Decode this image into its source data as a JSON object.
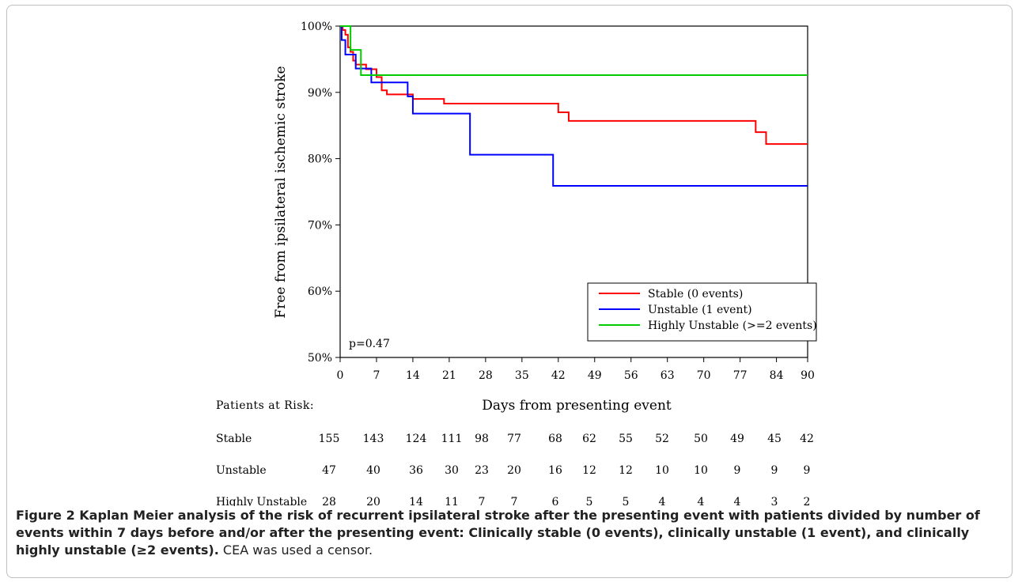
{
  "chart_data": {
    "type": "line",
    "step": true,
    "xlabel": "Days from presenting event",
    "ylabel": "Free from ipsilateral ischemic stroke",
    "xlim": [
      0,
      90
    ],
    "ylim": [
      50,
      100
    ],
    "x_ticks": [
      0,
      7,
      14,
      21,
      28,
      35,
      42,
      49,
      56,
      63,
      70,
      77,
      84,
      90
    ],
    "y_ticks": [
      50,
      60,
      70,
      80,
      90,
      100
    ],
    "y_tick_labels": [
      "50%",
      "60%",
      "70%",
      "80%",
      "90%",
      "100%"
    ],
    "annotation": "p=0.47",
    "legend_position": "bottom-right",
    "series": [
      {
        "name": "Stable (0 events)",
        "color": "#ff0000",
        "points": [
          [
            0,
            100
          ],
          [
            0.5,
            99.4
          ],
          [
            1,
            98.7
          ],
          [
            1.5,
            96.8
          ],
          [
            2,
            96.1
          ],
          [
            2.5,
            94.8
          ],
          [
            3,
            94.2
          ],
          [
            5,
            93.5
          ],
          [
            7,
            92.3
          ],
          [
            8,
            90.3
          ],
          [
            9,
            89.7
          ],
          [
            14,
            89.0
          ],
          [
            20,
            88.3
          ],
          [
            42,
            87.0
          ],
          [
            44,
            85.7
          ],
          [
            80,
            84.0
          ],
          [
            82,
            82.2
          ],
          [
            90,
            82.2
          ]
        ]
      },
      {
        "name": "Unstable (1 event)",
        "color": "#0000ff",
        "points": [
          [
            0,
            100
          ],
          [
            0.3,
            97.9
          ],
          [
            1,
            95.7
          ],
          [
            3,
            93.6
          ],
          [
            6,
            91.5
          ],
          [
            13,
            89.4
          ],
          [
            14,
            86.8
          ],
          [
            25,
            80.6
          ],
          [
            41,
            75.9
          ],
          [
            90,
            75.9
          ]
        ]
      },
      {
        "name": "Highly Unstable (>=2 events)",
        "color": "#00cc00",
        "points": [
          [
            0,
            100
          ],
          [
            2,
            96.4
          ],
          [
            4,
            92.6
          ],
          [
            90,
            92.6
          ]
        ]
      }
    ]
  },
  "risk_table": {
    "title": "Patients at Risk:",
    "rows": [
      {
        "label": "Stable",
        "values": [
          "155",
          "143",
          "124",
          "111",
          "98",
          "77",
          "68",
          "62",
          "55",
          "52",
          "50",
          "49",
          "45",
          "42"
        ]
      },
      {
        "label": "Unstable",
        "values": [
          "47",
          "40",
          "36",
          "30",
          "23",
          "20",
          "16",
          "12",
          "12",
          "10",
          "10",
          "9",
          "9",
          "9"
        ]
      },
      {
        "label": "Highly Unstable",
        "values": [
          "28",
          "20",
          "14",
          "11",
          "7",
          "7",
          "6",
          "5",
          "5",
          "4",
          "4",
          "4",
          "3",
          "2"
        ]
      }
    ]
  },
  "caption": {
    "bold": "Figure 2 Kaplan Meier analysis of the risk of recurrent ipsilateral stroke after the presenting event with patients divided by number of events within 7 days before and/or after the presenting event: Clinically stable (0 events), clinically unstable (1 event), and clinically highly unstable (≥2 events).",
    "normal": " CEA was used a censor."
  }
}
